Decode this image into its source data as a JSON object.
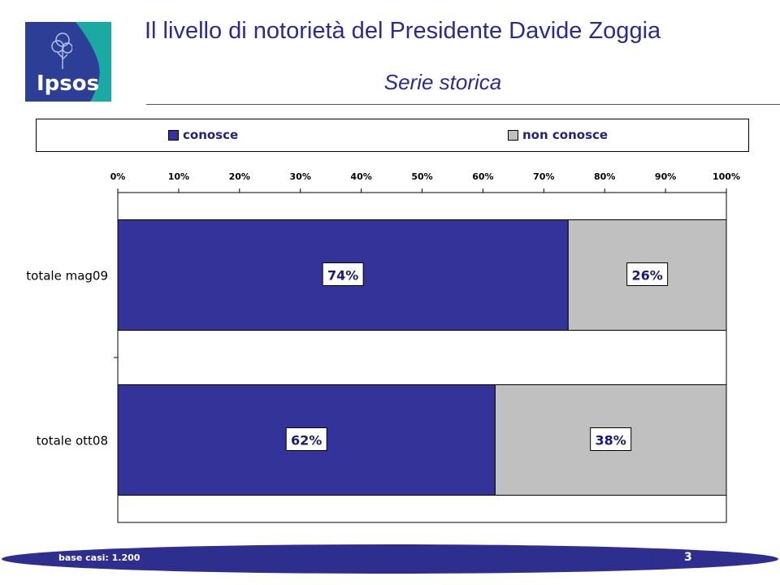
{
  "header": {
    "title": "Il livello di notorietà del Presidente Davide Zoggia",
    "subtitle": "Serie storica",
    "logo_text": "Ipsos"
  },
  "colors": {
    "conosce": "#333399",
    "non_conosce": "#c0c0c0",
    "title": "#2b2c8c",
    "footer": "#2e2e8e",
    "logo_blue": "#2c3e95",
    "logo_teal": "#1aa9a3"
  },
  "chart_data": {
    "type": "bar",
    "orientation": "horizontal",
    "stacked": true,
    "categories": [
      "totale mag09",
      "totale ott08"
    ],
    "series": [
      {
        "name": "conosce",
        "values": [
          74,
          62
        ],
        "labels": [
          "74%",
          "62%"
        ]
      },
      {
        "name": "non conosce",
        "values": [
          26,
          38
        ],
        "labels": [
          "26%",
          "38%"
        ]
      }
    ],
    "xlim": [
      0,
      100
    ],
    "x_ticks": [
      "0%",
      "10%",
      "20%",
      "30%",
      "40%",
      "50%",
      "60%",
      "70%",
      "80%",
      "90%",
      "100%"
    ],
    "x_axis_position": "top",
    "legend_position": "top",
    "grid": false
  },
  "footer": {
    "base_note": "base casi: 1.200",
    "page_number": "3"
  }
}
